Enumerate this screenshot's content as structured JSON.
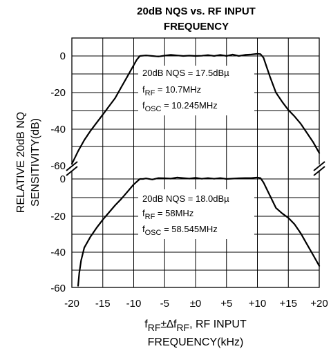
{
  "chart_data": {
    "type": "line",
    "title_line1": "20dB NQS vs. RF INPUT",
    "title_line2": "FREQUENCY",
    "ylabel_line1": "RELATIVE 20dB NQ",
    "ylabel_line2": "SENSITIVITY(dB)",
    "xlabel_line2": "FREQUENCY(kHz)",
    "xlabel_line1": {
      "f1": "f",
      "sub1": "RF",
      "mid": "±∆f",
      "sub2": "RF",
      "rest": ", RF INPUT"
    },
    "xlim": [
      -20,
      20
    ],
    "ylim": [
      -60,
      0
    ],
    "x_ticks": [
      -20,
      -15,
      -10,
      -5,
      0,
      5,
      10,
      15,
      20
    ],
    "x_tick_labels": [
      "-20",
      "-15",
      "-10",
      "-5",
      "±0",
      "+5",
      "+10",
      "+15",
      "+20"
    ],
    "y_tick_labels_top": [
      "0",
      "-20",
      "-40",
      "-60"
    ],
    "y_tick_labels_bottom": [
      "0",
      "-20",
      "-40",
      "-60"
    ],
    "series": [
      {
        "panel": "top",
        "annotations": {
          "nqs": "20dB NQS = 17.5dBµ",
          "frf": {
            "f": "f",
            "sub": "RF",
            "rest": " = 10.7MHz"
          },
          "fosc": {
            "f": "f",
            "sub": "OSC",
            "rest": " = 10.245MHz"
          }
        },
        "x": [
          -20,
          -19,
          -18,
          -17,
          -16,
          -15,
          -14,
          -13,
          -12,
          -11,
          -10,
          -9.5,
          -9,
          -8,
          -7,
          -6,
          -5,
          -4,
          -3,
          -2,
          -1,
          0,
          1,
          2,
          3,
          4,
          5,
          6,
          7,
          8,
          9,
          10,
          10.5,
          11,
          12,
          13,
          14,
          15,
          16,
          17,
          18,
          19,
          20
        ],
        "y": [
          -59,
          -52,
          -46,
          -41,
          -36.5,
          -32,
          -27.5,
          -23,
          -17,
          -11,
          -5,
          -2,
          0,
          0.3,
          0,
          -0.3,
          0.2,
          0.6,
          0.3,
          0,
          0.2,
          0,
          0.1,
          0.5,
          0,
          0.6,
          0,
          0.8,
          0,
          0.6,
          0.8,
          1.2,
          1,
          -1,
          -11,
          -20,
          -25,
          -29.5,
          -33,
          -37,
          -42,
          -47,
          -53
        ]
      },
      {
        "panel": "bottom",
        "annotations": {
          "nqs": "20dB NQS = 18.0dBµ",
          "frf": {
            "f": "f",
            "sub": "RF",
            "rest": " = 58MHz"
          },
          "fosc": {
            "f": "f",
            "sub": "OSC",
            "rest": " = 58.545MHz"
          }
        },
        "x": [
          -19,
          -18.8,
          -18.5,
          -18,
          -17,
          -16,
          -15,
          -14,
          -13,
          -12,
          -11,
          -10,
          -9,
          -8.5,
          -8,
          -7,
          -6,
          -5,
          -4,
          -3,
          -2,
          -1,
          0,
          1,
          2,
          3,
          4,
          5,
          6,
          7,
          8,
          9,
          10,
          10.5,
          11,
          12,
          13,
          14,
          15,
          16,
          17,
          18,
          19,
          20
        ],
        "y": [
          -59,
          -52,
          -45,
          -38,
          -32,
          -27,
          -22.5,
          -18.5,
          -14.5,
          -11,
          -7,
          -3,
          0,
          0,
          0.3,
          -0.3,
          0.5,
          0.4,
          0.2,
          0.8,
          0.5,
          0.2,
          0.6,
          0.1,
          0.5,
          0.1,
          0.5,
          0,
          0.2,
          0.4,
          0.5,
          0.5,
          0.8,
          0.5,
          -2,
          -9,
          -16,
          -19,
          -21.5,
          -25,
          -30,
          -36,
          -42,
          -48
        ]
      }
    ],
    "grid": true,
    "axis_break": true
  }
}
